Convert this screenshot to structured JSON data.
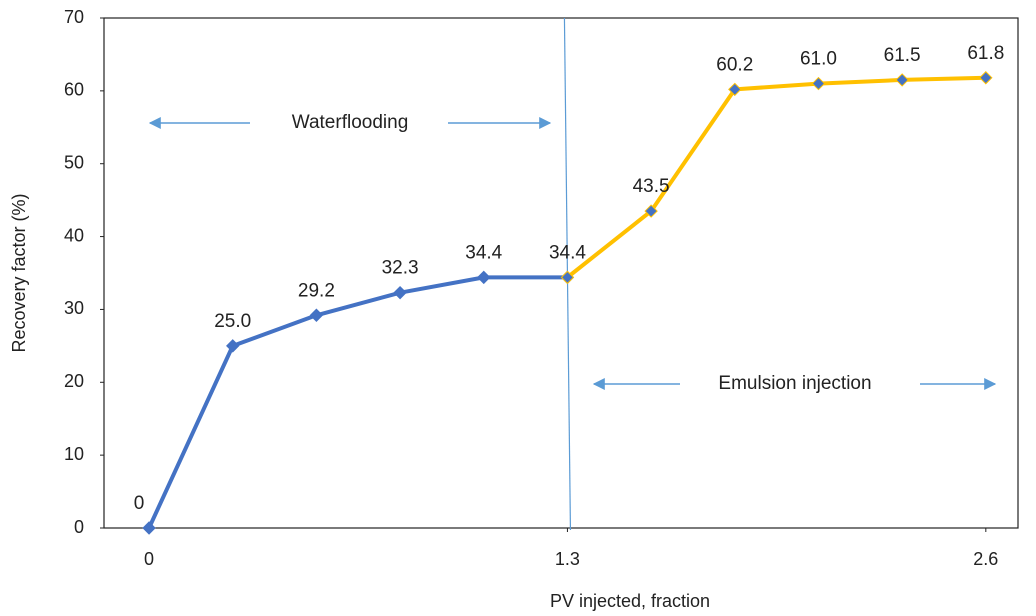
{
  "chart_data": {
    "type": "line",
    "x_label": "PV injected, fraction",
    "y_label": "Recovery factor (%)",
    "annotations": [
      "Waterflooding",
      "Emulsion injection"
    ],
    "xlim": [
      -0.14,
      2.7
    ],
    "ylim": [
      0,
      70
    ],
    "xticks": [
      0,
      1.3,
      2.6
    ],
    "yticks": [
      0,
      10,
      20,
      30,
      40,
      50,
      60,
      70
    ],
    "grid": false,
    "series": [
      {
        "name": "Waterflooding",
        "color": "#4472c4",
        "x": [
          0,
          0.26,
          0.52,
          0.78,
          1.04,
          1.3
        ],
        "values": [
          0,
          25.0,
          29.2,
          32.3,
          34.4,
          34.4
        ],
        "value_labels": [
          "0",
          "25.0",
          "29.2",
          "32.3",
          "34.4",
          "34.4"
        ]
      },
      {
        "name": "Emulsion injection",
        "color": "#ffc000",
        "x": [
          1.3,
          1.56,
          1.82,
          2.08,
          2.34,
          2.6
        ],
        "values": [
          34.4,
          43.5,
          60.2,
          61.0,
          61.5,
          61.8
        ],
        "value_labels": [
          null,
          "43.5",
          "60.2",
          "61.0",
          "61.5",
          "61.8"
        ]
      }
    ]
  }
}
